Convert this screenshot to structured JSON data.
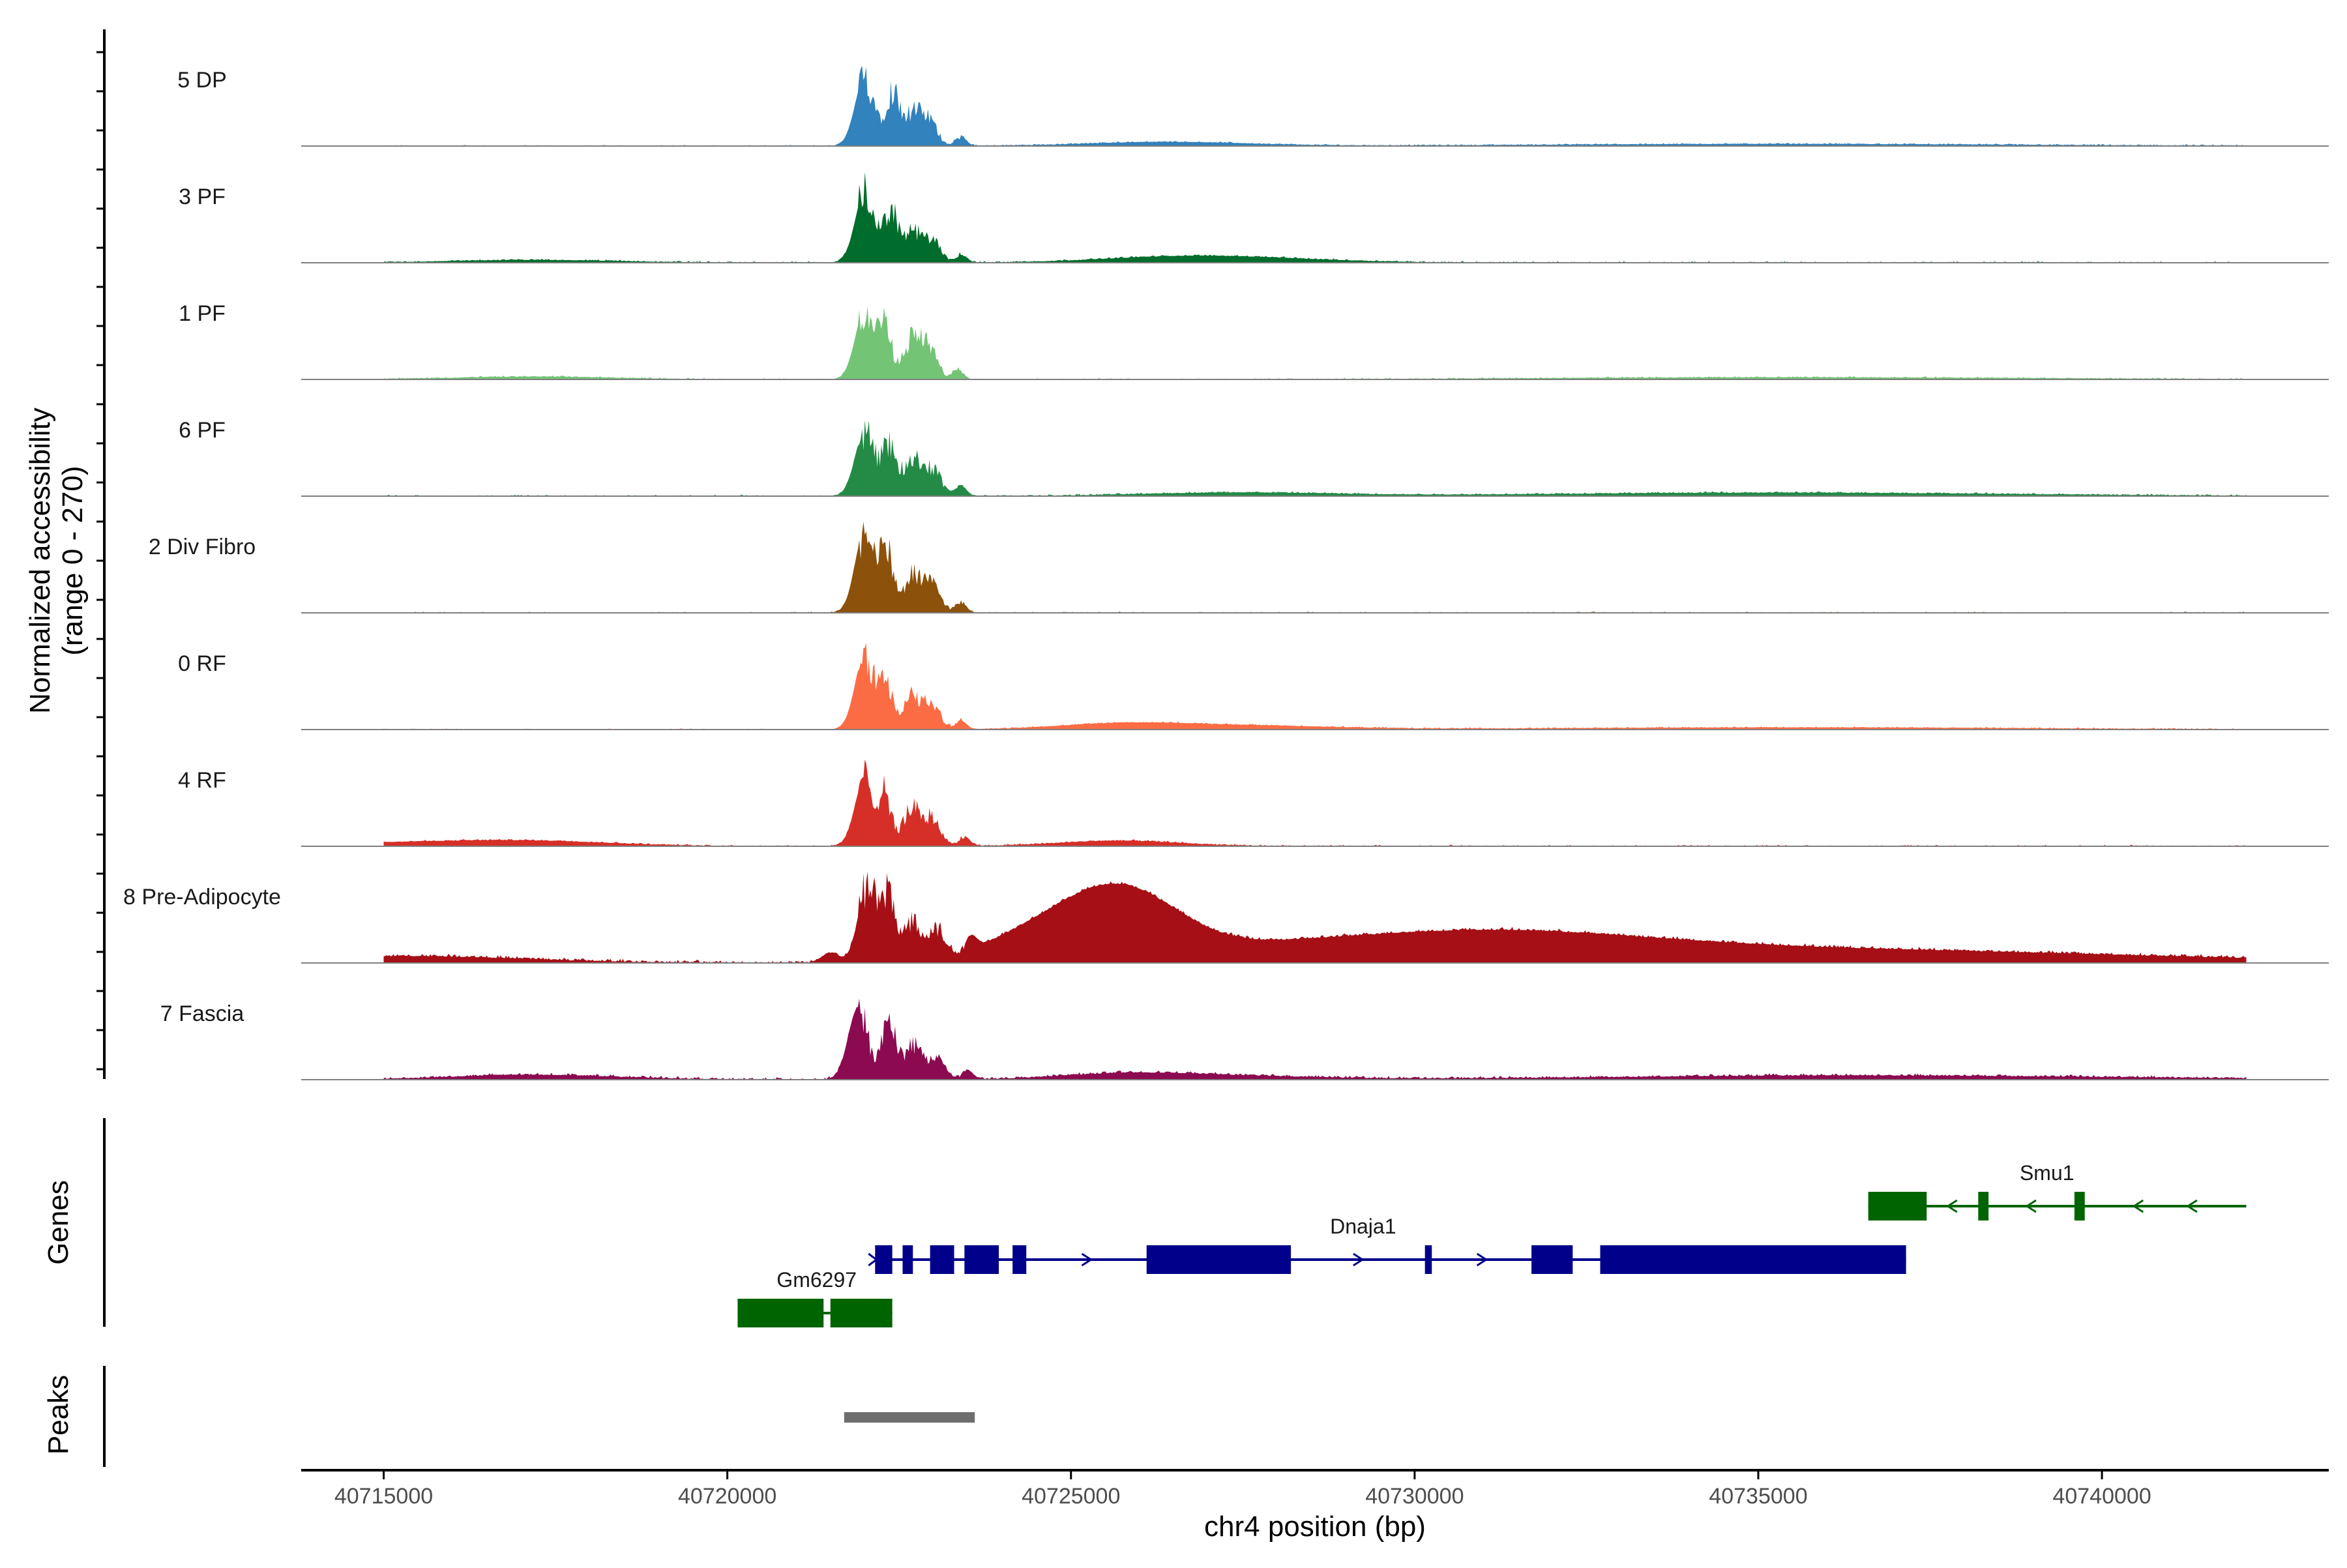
{
  "chart_data": {
    "type": "area",
    "description_axis": {
      "ylabel_line1": "Normalized accessibility",
      "ylabel_line2": "(range 0 - 270)",
      "ylim": [
        0,
        270
      ],
      "xlabel": "chr4 position (bp)",
      "xlim": [
        40713800,
        40743300
      ],
      "xticks": [
        40715000,
        40720000,
        40725000,
        40730000,
        40735000,
        40740000
      ],
      "xtick_labels": [
        "40715000",
        "40720000",
        "40725000",
        "40730000",
        "40735000",
        "40740000"
      ]
    },
    "signal_range": [
      40715000,
      40742100
    ],
    "tracks": [
      {
        "name": "5 DP",
        "color": "#3182bd",
        "peaks": [
          [
            40722000,
            40722450,
            200
          ],
          [
            40722400,
            40722280,
            150
          ],
          [
            40722700,
            40722450,
            95
          ],
          [
            40722950,
            40722350,
            60
          ],
          [
            40723400,
            40722200,
            25
          ],
          [
            40726400,
            40726500,
            12
          ],
          [
            40735300,
            40735500,
            6
          ]
        ],
        "noise": 4
      },
      {
        "name": "3 PF",
        "color": "#006d2c",
        "peaks": [
          [
            40722000,
            40722450,
            205
          ],
          [
            40722380,
            40722260,
            150
          ],
          [
            40722700,
            40722450,
            90
          ],
          [
            40723000,
            40722350,
            55
          ],
          [
            40723400,
            40722200,
            25
          ],
          [
            40726500,
            40726450,
            10
          ],
          [
            40727400,
            40727450,
            12
          ],
          [
            40717200,
            40717400,
            8
          ]
        ],
        "noise": 5
      },
      {
        "name": "1 PF",
        "color": "#74c476",
        "peaks": [
          [
            40722000,
            40722450,
            200
          ],
          [
            40722300,
            40722230,
            145
          ],
          [
            40722700,
            40722450,
            120
          ],
          [
            40722950,
            40722350,
            75
          ],
          [
            40723350,
            40722200,
            28
          ],
          [
            40717200,
            40717400,
            8
          ],
          [
            40735500,
            40735500,
            6
          ]
        ],
        "noise": 4
      },
      {
        "name": "6 PF",
        "color": "#238b45",
        "peaks": [
          [
            40722000,
            40722450,
            190
          ],
          [
            40722350,
            40722260,
            150
          ],
          [
            40722700,
            40722450,
            110
          ],
          [
            40723000,
            40722350,
            70
          ],
          [
            40723400,
            40722200,
            30
          ],
          [
            40727400,
            40727400,
            10
          ],
          [
            40735300,
            40735500,
            10
          ]
        ],
        "noise": 5
      },
      {
        "name": "2 Div Fibro",
        "color": "#8c510a",
        "peaks": [
          [
            40722000,
            40722450,
            240
          ],
          [
            40722320,
            40722250,
            170
          ],
          [
            40722700,
            40722450,
            110
          ],
          [
            40723000,
            40722350,
            72
          ],
          [
            40723400,
            40722200,
            30
          ]
        ],
        "noise": 4
      },
      {
        "name": "0 RF",
        "color": "#fc6c44",
        "peaks": [
          [
            40722000,
            40722450,
            220
          ],
          [
            40722300,
            40722230,
            145
          ],
          [
            40722700,
            40722450,
            100
          ],
          [
            40723000,
            40722350,
            60
          ],
          [
            40723400,
            40722200,
            25
          ],
          [
            40725700,
            40725400,
            14
          ],
          [
            40727300,
            40727450,
            12
          ],
          [
            40735500,
            40735500,
            6
          ]
        ],
        "noise": 4
      },
      {
        "name": "4 RF",
        "color": "#d62f27",
        "peaks": [
          [
            40722000,
            40722450,
            200
          ],
          [
            40722300,
            40722230,
            140
          ],
          [
            40722700,
            40722450,
            110
          ],
          [
            40723000,
            40722350,
            70
          ],
          [
            40723450,
            40722200,
            28
          ],
          [
            40725700,
            40725400,
            16
          ],
          [
            40717200,
            40717400,
            12
          ],
          [
            40715250,
            40715350,
            10
          ]
        ],
        "noise": 5
      },
      {
        "name": "8 Pre-Adipocyte",
        "color": "#a50f15",
        "peaks": [
          [
            40722050,
            40722450,
            230
          ],
          [
            40722350,
            40722250,
            170
          ],
          [
            40722700,
            40722450,
            120
          ],
          [
            40723050,
            40722350,
            80
          ],
          [
            40723550,
            40722200,
            40
          ],
          [
            40721500,
            40721600,
            28
          ],
          [
            40725700,
            40725300,
            160
          ],
          [
            40725500,
            40725300,
            50
          ],
          [
            40724500,
            40724600,
            30
          ],
          [
            40724000,
            40724500,
            25
          ],
          [
            40730550,
            40730500,
            28
          ],
          [
            40731450,
            40731500,
            22
          ],
          [
            40731800,
            40731800,
            26
          ],
          [
            40727400,
            40727500,
            22
          ],
          [
            40715300,
            40715300,
            20
          ],
          [
            40735650,
            40735600,
            20
          ],
          [
            40738050,
            40738000,
            18
          ],
          [
            40729500,
            40729500,
            15
          ]
        ],
        "noise": 10
      },
      {
        "name": "7 Fascia",
        "color": "#8b0a50",
        "peaks": [
          [
            40721900,
            40722450,
            210
          ],
          [
            40722350,
            40722250,
            180
          ],
          [
            40722700,
            40722450,
            100
          ],
          [
            40723050,
            40722350,
            60
          ],
          [
            40723500,
            40722200,
            25
          ],
          [
            40717200,
            40717400,
            14
          ],
          [
            40725700,
            40725450,
            12
          ],
          [
            40727000,
            40727400,
            12
          ],
          [
            40736500,
            40736500,
            12
          ]
        ],
        "noise": 8
      }
    ],
    "genes": [
      {
        "name": "Dnaja1",
        "color": "#00008b",
        "strand": "+",
        "start": 40722150,
        "end": 40737150,
        "row": 2,
        "exons": [
          [
            40722150,
            40722400
          ],
          [
            40722550,
            40722700
          ],
          [
            40722950,
            40723300
          ],
          [
            40723450,
            40723950
          ],
          [
            40724150,
            40724350
          ],
          [
            40726100,
            40728200
          ],
          [
            40730150,
            40730250
          ],
          [
            40731700,
            40732300
          ],
          [
            40732700,
            40737150
          ]
        ]
      },
      {
        "name": "Smu1",
        "color": "#006400",
        "strand": "-",
        "start": 40736600,
        "end": 40742100,
        "row": 1,
        "exons": [
          [
            40736600,
            40737450
          ],
          [
            40738200,
            40738350
          ],
          [
            40739600,
            40739750
          ]
        ]
      },
      {
        "name": "Gm6297",
        "color": "#006400",
        "strand": "+",
        "start": 40720150,
        "end": 40722400,
        "row": 3,
        "exons": [
          [
            40720150,
            40721400
          ],
          [
            40721500,
            40722400
          ]
        ]
      }
    ],
    "gene_track_title": "Genes",
    "peak_track_title": "Peaks",
    "peaks_regions": [
      [
        40721700,
        40723600
      ]
    ],
    "peak_color": "#6e6e6e"
  }
}
